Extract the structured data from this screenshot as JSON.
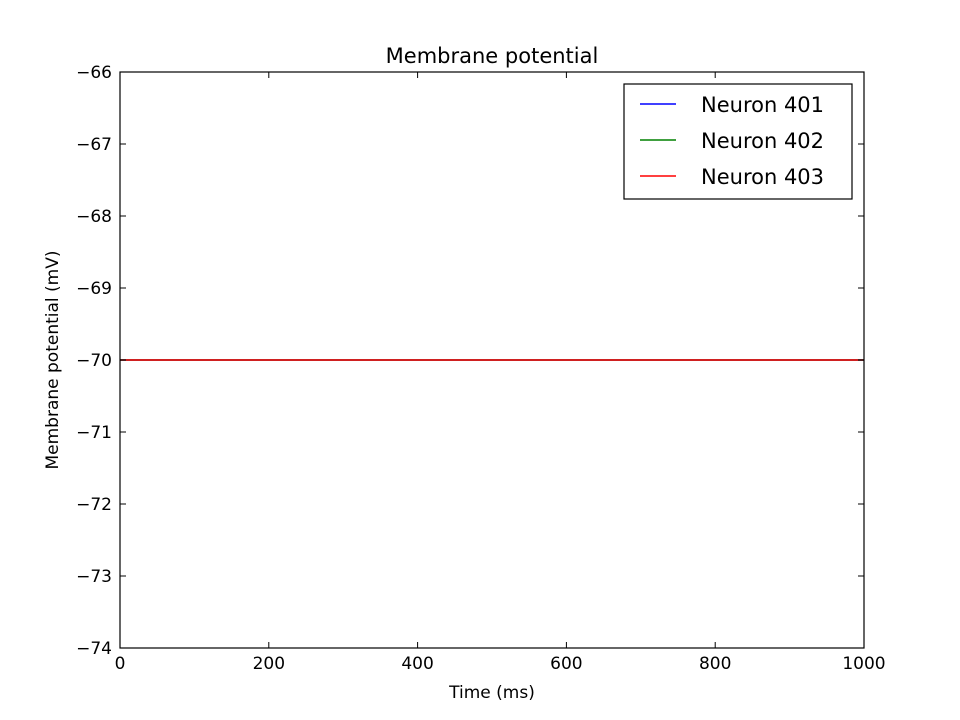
{
  "chart_data": {
    "type": "line",
    "title": "Membrane potential",
    "xlabel": "Time (ms)",
    "ylabel": "Membrane potential (mV)",
    "xlim": [
      0,
      1000
    ],
    "ylim": [
      -74,
      -66
    ],
    "xticks": [
      0,
      200,
      400,
      600,
      800,
      1000
    ],
    "xtick_labels": [
      "0",
      "200",
      "400",
      "600",
      "800",
      "1000"
    ],
    "yticks": [
      -74,
      -73,
      -72,
      -71,
      -70,
      -69,
      -68,
      -67,
      -66
    ],
    "ytick_labels": [
      "−74",
      "−73",
      "−72",
      "−71",
      "−70",
      "−69",
      "−68",
      "−67",
      "−66"
    ],
    "grid": false,
    "legend_position": "top-right",
    "series": [
      {
        "name": "Neuron 401",
        "color": "#0000ff",
        "x": [
          0,
          1000
        ],
        "y": [
          -70,
          -70
        ]
      },
      {
        "name": "Neuron 402",
        "color": "#008000",
        "x": [
          0,
          1000
        ],
        "y": [
          -70,
          -70
        ]
      },
      {
        "name": "Neuron 403",
        "color": "#ff0000",
        "x": [
          0,
          1000
        ],
        "y": [
          -70,
          -70
        ]
      }
    ]
  }
}
